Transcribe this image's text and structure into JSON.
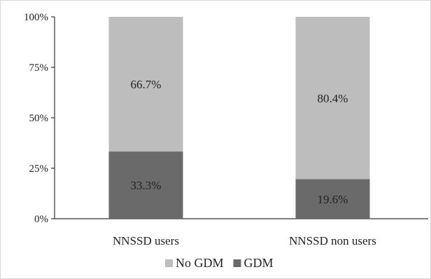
{
  "chart_data": {
    "type": "bar",
    "stacked": true,
    "percent": true,
    "categories": [
      "NNSSD users",
      "NNSSD non users"
    ],
    "series": [
      {
        "name": "GDM",
        "values": [
          33.3,
          19.6
        ],
        "labels": [
          "33.3%",
          "19.6%"
        ],
        "color": "#6a6a6a"
      },
      {
        "name": "No GDM",
        "values": [
          66.7,
          80.4
        ],
        "labels": [
          "66.7%",
          "80.4%"
        ],
        "color": "#bdbdbd"
      }
    ],
    "ylim": [
      0,
      100
    ],
    "yticks": [
      0,
      25,
      50,
      75,
      100
    ],
    "ytick_labels": [
      "0%",
      "25%",
      "50%",
      "75%",
      "100%"
    ],
    "legend": {
      "position": "bottom",
      "items": [
        "No GDM",
        "GDM"
      ]
    },
    "grid": false
  }
}
